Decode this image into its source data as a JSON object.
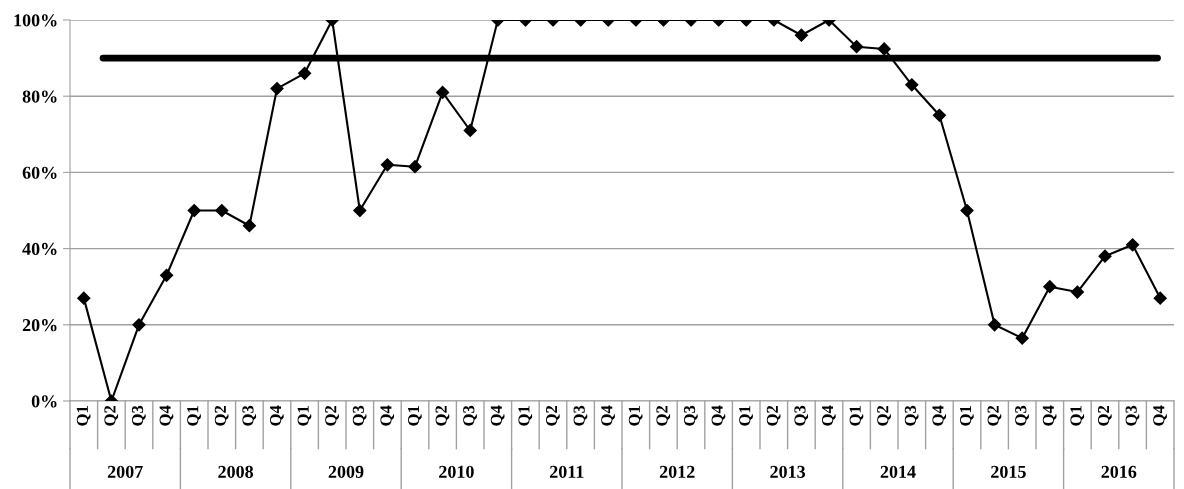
{
  "chart_data": {
    "type": "line",
    "categories": [
      "Q1",
      "Q2",
      "Q3",
      "Q4",
      "Q1",
      "Q2",
      "Q3",
      "Q4",
      "Q1",
      "Q2",
      "Q3",
      "Q4",
      "Q1",
      "Q2",
      "Q3",
      "Q4",
      "Q1",
      "Q2",
      "Q3",
      "Q4",
      "Q1",
      "Q2",
      "Q3",
      "Q4",
      "Q1",
      "Q2",
      "Q3",
      "Q4",
      "Q1",
      "Q2",
      "Q3",
      "Q4",
      "Q1",
      "Q2",
      "Q3",
      "Q4",
      "Q1",
      "Q2",
      "Q3",
      "Q4"
    ],
    "series": [
      {
        "color": "#000000",
        "values": [
          27,
          0,
          20,
          33,
          50,
          50,
          46,
          82,
          86,
          100,
          50,
          62,
          61.5,
          81,
          71,
          100,
          100,
          100,
          100,
          100,
          100,
          100,
          100,
          100,
          100,
          100,
          96,
          100,
          93,
          92.4,
          83,
          75,
          50,
          20,
          16.5,
          30,
          28.6,
          38,
          41,
          27
        ]
      }
    ],
    "annotations": [
      "2007",
      "2008",
      "2009",
      "2010",
      "2011",
      "2012",
      "2013",
      "2014",
      "2015",
      "2016"
    ],
    "ylim": [
      0,
      100
    ],
    "yticks": [
      {
        "value": 0,
        "label": "0%"
      },
      {
        "value": 20,
        "label": "20%"
      },
      {
        "value": 40,
        "label": "40%"
      },
      {
        "value": 60,
        "label": "60%"
      },
      {
        "value": 80,
        "label": "80%"
      },
      {
        "value": 100,
        "label": "100%"
      }
    ],
    "ref_lines": [
      {
        "axis": "y",
        "value": 90,
        "color": "#000000"
      }
    ],
    "grid": "y",
    "marker": "diamond",
    "line_style": "solid",
    "legend": false
  }
}
